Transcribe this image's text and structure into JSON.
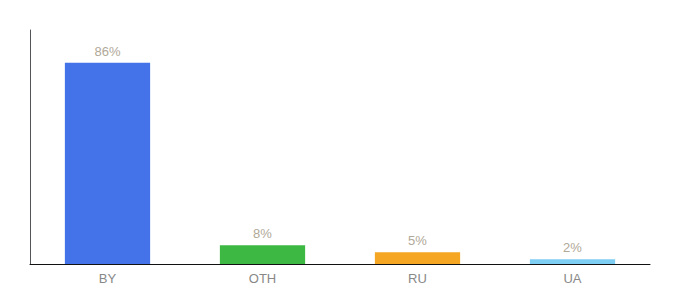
{
  "chart_data": {
    "type": "bar",
    "categories": [
      "BY",
      "OTH",
      "RU",
      "UA"
    ],
    "values": [
      86,
      8,
      5,
      2
    ],
    "value_labels": [
      "86%",
      "8%",
      "5%",
      "2%"
    ],
    "data_labels": true,
    "colors": [
      "#4472e8",
      "#3db843",
      "#f5a623",
      "#7ecef4"
    ],
    "ylim": [
      0,
      100
    ],
    "grid": false,
    "tick_labels": "x"
  }
}
